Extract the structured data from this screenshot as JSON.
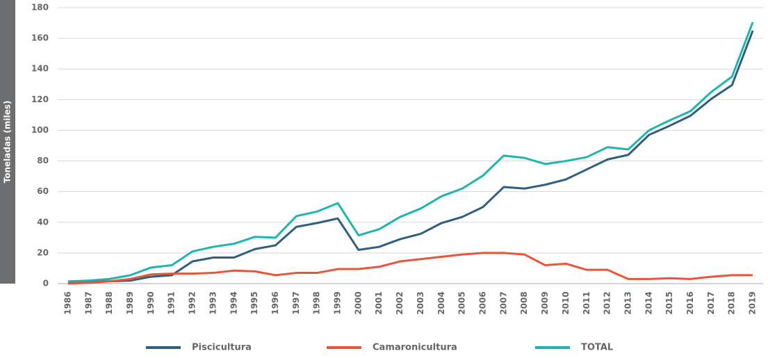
{
  "chart_data": {
    "type": "line",
    "y_label": "Toneladas (miles)",
    "categories": [
      "1986",
      "1987",
      "1988",
      "1989",
      "1990",
      "1991",
      "1992",
      "1993",
      "1994",
      "1995",
      "1996",
      "1997",
      "1998",
      "1999",
      "2000",
      "2001",
      "2002",
      "2003",
      "2004",
      "2005",
      "2006",
      "2007",
      "2008",
      "2009",
      "2010",
      "2011",
      "2012",
      "2013",
      "2014",
      "2015",
      "2016",
      "2017",
      "2018",
      "2019"
    ],
    "series": [
      {
        "name": "Piscicultura",
        "color": "#2e5e80",
        "values": [
          1,
          1.5,
          1.5,
          2,
          4.5,
          5.5,
          14.5,
          17,
          17,
          22.5,
          25,
          37,
          39.5,
          42.5,
          22,
          24,
          29,
          32.5,
          39.5,
          43.5,
          50,
          63,
          62,
          64.5,
          68,
          74.5,
          81,
          84,
          97,
          103,
          109.5,
          120.5,
          129.5,
          165
        ]
      },
      {
        "name": "Camaronicultura",
        "color": "#e8563a",
        "values": [
          0,
          0.5,
          1.5,
          3,
          6,
          6.5,
          6.5,
          7,
          8.5,
          8,
          5.5,
          7,
          7,
          9.5,
          9.5,
          11,
          14.5,
          16,
          17.5,
          19,
          20,
          20,
          19,
          12,
          13,
          9,
          9,
          3,
          3,
          3.5,
          3,
          4.5,
          5.5,
          5.5
        ]
      },
      {
        "name": "TOTAL",
        "color": "#1db5b0",
        "values": [
          1.5,
          2,
          3,
          5.5,
          10.5,
          12,
          21,
          24,
          26,
          30.5,
          30,
          44,
          47,
          52.5,
          31.5,
          35.5,
          43.5,
          49,
          57,
          62,
          70.5,
          83.5,
          82,
          78,
          80,
          82.5,
          89,
          87.5,
          100,
          106.5,
          112.5,
          125,
          135,
          170.5
        ]
      }
    ],
    "ylim": [
      0,
      180
    ],
    "yticks": [
      0,
      20,
      40,
      60,
      80,
      100,
      120,
      140,
      160,
      180
    ],
    "grid": true
  }
}
